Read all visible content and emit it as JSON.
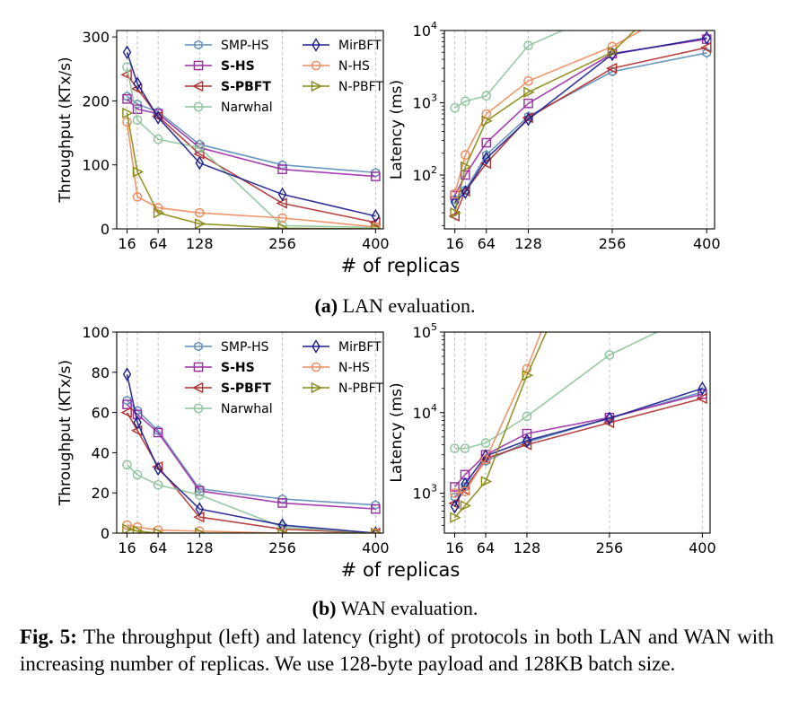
{
  "caption_a": {
    "label": "(a)",
    "text": "LAN evaluation."
  },
  "caption_b": {
    "label": "(b)",
    "text": "WAN evaluation."
  },
  "figure_caption": {
    "label": "Fig. 5:",
    "text": "The throughput (left) and latency (right) of protocols in both LAN and WAN with increasing number of replicas. We use 128-byte payload and 128KB batch size."
  },
  "legend": [
    {
      "name": "SMP-HS",
      "bold": false,
      "color": "#5b8db8",
      "marker": "hexagon"
    },
    {
      "name": "S-HS",
      "bold": true,
      "color": "#9b2ca3",
      "marker": "square"
    },
    {
      "name": "S-PBFT",
      "bold": true,
      "color": "#b0302f",
      "marker": "tri-left"
    },
    {
      "name": "Narwhal",
      "bold": false,
      "color": "#8cc49a",
      "marker": "circle"
    },
    {
      "name": "MirBFT",
      "bold": false,
      "color": "#1c1f8f",
      "marker": "diamond"
    },
    {
      "name": "N-HS",
      "bold": false,
      "color": "#ef8a5b",
      "marker": "circle"
    },
    {
      "name": "N-PBFT",
      "bold": false,
      "color": "#8a8a12",
      "marker": "tri-right"
    }
  ],
  "chart_data": [
    {
      "id": "lan-throughput",
      "type": "line",
      "ylabel": "Throughput (KTx/s)",
      "xlabel": "",
      "xticks": [
        16,
        64,
        128,
        256,
        400
      ],
      "x_extra_gridlines": [
        32
      ],
      "ylim": [
        0,
        310
      ],
      "yticks": [
        0,
        100,
        200,
        300
      ],
      "yscale": "linear",
      "series": [
        {
          "name": "SMP-HS",
          "x": [
            16,
            32,
            64,
            128,
            256,
            400
          ],
          "y": [
            207,
            195,
            183,
            132,
            100,
            88
          ]
        },
        {
          "name": "S-HS",
          "x": [
            16,
            32,
            64,
            128,
            256,
            400
          ],
          "y": [
            203,
            187,
            180,
            127,
            93,
            82
          ]
        },
        {
          "name": "S-PBFT",
          "x": [
            16,
            32,
            64,
            128,
            256,
            400
          ],
          "y": [
            241,
            219,
            176,
            117,
            40,
            10
          ]
        },
        {
          "name": "Narwhal",
          "x": [
            16,
            32,
            64,
            128,
            256,
            400
          ],
          "y": [
            253,
            170,
            140,
            127,
            5,
            2
          ]
        },
        {
          "name": "MirBFT",
          "x": [
            16,
            32,
            64,
            128,
            256,
            400
          ],
          "y": [
            276,
            227,
            174,
            103,
            54,
            20
          ]
        },
        {
          "name": "N-HS",
          "x": [
            16,
            32,
            64,
            128,
            256,
            400
          ],
          "y": [
            167,
            50,
            33,
            25,
            17,
            3
          ]
        },
        {
          "name": "N-PBFT",
          "x": [
            16,
            32,
            64,
            128,
            256,
            400
          ],
          "y": [
            181,
            89,
            25,
            8,
            1,
            0
          ]
        }
      ]
    },
    {
      "id": "lan-latency",
      "type": "line",
      "ylabel": "Latency (ms)",
      "xlabel": "",
      "xticks": [
        16,
        64,
        128,
        256,
        400
      ],
      "x_extra_gridlines": [
        32
      ],
      "ylim": [
        18,
        10000
      ],
      "yticks": [
        100,
        1000,
        10000
      ],
      "yticklabels": [
        [
          "10",
          "2"
        ],
        [
          "10",
          "3"
        ],
        [
          "10",
          "4"
        ]
      ],
      "yscale": "log",
      "series": [
        {
          "name": "SMP-HS",
          "x": [
            16,
            32,
            64,
            128,
            256,
            400
          ],
          "y": [
            46,
            62,
            190,
            650,
            2700,
            4900
          ]
        },
        {
          "name": "S-HS",
          "x": [
            16,
            32,
            64,
            128,
            256,
            400
          ],
          "y": [
            52,
            100,
            280,
            980,
            4800,
            7600
          ]
        },
        {
          "name": "S-PBFT",
          "x": [
            16,
            32,
            64,
            128,
            256,
            400
          ],
          "y": [
            27,
            60,
            145,
            620,
            3000,
            5800
          ]
        },
        {
          "name": "Narwhal",
          "x": [
            16,
            32,
            64,
            128,
            180
          ],
          "y": [
            850,
            1050,
            1250,
            6200,
            10000
          ]
        },
        {
          "name": "MirBFT",
          "x": [
            16,
            32,
            64,
            128,
            256,
            400
          ],
          "y": [
            42,
            58,
            170,
            590,
            4700,
            7900
          ]
        },
        {
          "name": "N-HS",
          "x": [
            16,
            32,
            64,
            128,
            256,
            300
          ],
          "y": [
            55,
            190,
            700,
            2000,
            6000,
            10000
          ]
        },
        {
          "name": "N-PBFT",
          "x": [
            16,
            32,
            64,
            128,
            256,
            290
          ],
          "y": [
            30,
            130,
            560,
            1400,
            5000,
            10000
          ]
        }
      ]
    },
    {
      "id": "wan-throughput",
      "type": "line",
      "ylabel": "Throughput (KTx/s)",
      "xlabel": "# of replicas",
      "xticks": [
        16,
        64,
        128,
        256,
        400
      ],
      "x_extra_gridlines": [
        32
      ],
      "ylim": [
        0,
        100
      ],
      "yticks": [
        0,
        20,
        40,
        60,
        80,
        100
      ],
      "yscale": "linear",
      "series": [
        {
          "name": "SMP-HS",
          "x": [
            16,
            32,
            64,
            128,
            256,
            400
          ],
          "y": [
            66,
            61,
            51,
            22,
            17,
            14
          ]
        },
        {
          "name": "S-HS",
          "x": [
            16,
            32,
            64,
            128,
            256,
            400
          ],
          "y": [
            64,
            59,
            50,
            21,
            15,
            12
          ]
        },
        {
          "name": "S-PBFT",
          "x": [
            16,
            32,
            64,
            128,
            256,
            400
          ],
          "y": [
            60,
            51,
            33,
            8,
            2,
            0
          ]
        },
        {
          "name": "Narwhal",
          "x": [
            16,
            32,
            64,
            128,
            256,
            400
          ],
          "y": [
            34,
            29,
            24,
            19,
            3,
            0
          ]
        },
        {
          "name": "MirBFT",
          "x": [
            16,
            32,
            64,
            128,
            256,
            400
          ],
          "y": [
            79,
            55,
            32,
            12,
            4,
            0
          ]
        },
        {
          "name": "N-HS",
          "x": [
            16,
            32,
            64,
            128,
            256,
            400
          ],
          "y": [
            4,
            3,
            1.5,
            1,
            0,
            0
          ]
        },
        {
          "name": "N-PBFT",
          "x": [
            16,
            32,
            64,
            128,
            256,
            400
          ],
          "y": [
            2,
            1,
            0,
            0,
            0,
            0
          ]
        }
      ]
    },
    {
      "id": "wan-latency",
      "type": "line",
      "ylabel": "Latency (ms)",
      "xlabel": "",
      "xticks": [
        16,
        64,
        128,
        256,
        400
      ],
      "x_extra_gridlines": [
        32
      ],
      "ylim": [
        320,
        100000
      ],
      "yticks": [
        1000,
        10000,
        100000
      ],
      "yticklabels": [
        [
          "10",
          "3"
        ],
        [
          "10",
          "4"
        ],
        [
          "10",
          "5"
        ]
      ],
      "yscale": "log",
      "series": [
        {
          "name": "SMP-HS",
          "x": [
            16,
            32,
            64,
            128,
            256,
            400
          ],
          "y": [
            900,
            1200,
            2500,
            4300,
            8500,
            18000
          ]
        },
        {
          "name": "S-HS",
          "x": [
            16,
            32,
            64,
            128,
            256,
            400
          ],
          "y": [
            1200,
            1700,
            3000,
            5500,
            8700,
            17000
          ]
        },
        {
          "name": "S-PBFT",
          "x": [
            16,
            32,
            64,
            128,
            256,
            400
          ],
          "y": [
            750,
            1100,
            2700,
            4000,
            7500,
            15000
          ]
        },
        {
          "name": "Narwhal",
          "x": [
            16,
            32,
            64,
            128,
            256,
            330
          ],
          "y": [
            3600,
            3600,
            4200,
            9000,
            52000,
            100000
          ]
        },
        {
          "name": "MirBFT",
          "x": [
            16,
            32,
            64,
            128,
            256,
            400
          ],
          "y": [
            680,
            1300,
            2900,
            4500,
            8500,
            20000
          ]
        },
        {
          "name": "N-HS",
          "x": [
            16,
            32,
            64,
            128,
            150
          ],
          "y": [
            1000,
            1050,
            2600,
            35000,
            100000
          ]
        },
        {
          "name": "N-PBFT",
          "x": [
            16,
            32,
            64,
            128,
            158
          ],
          "y": [
            500,
            700,
            1400,
            29000,
            100000
          ]
        }
      ]
    }
  ]
}
